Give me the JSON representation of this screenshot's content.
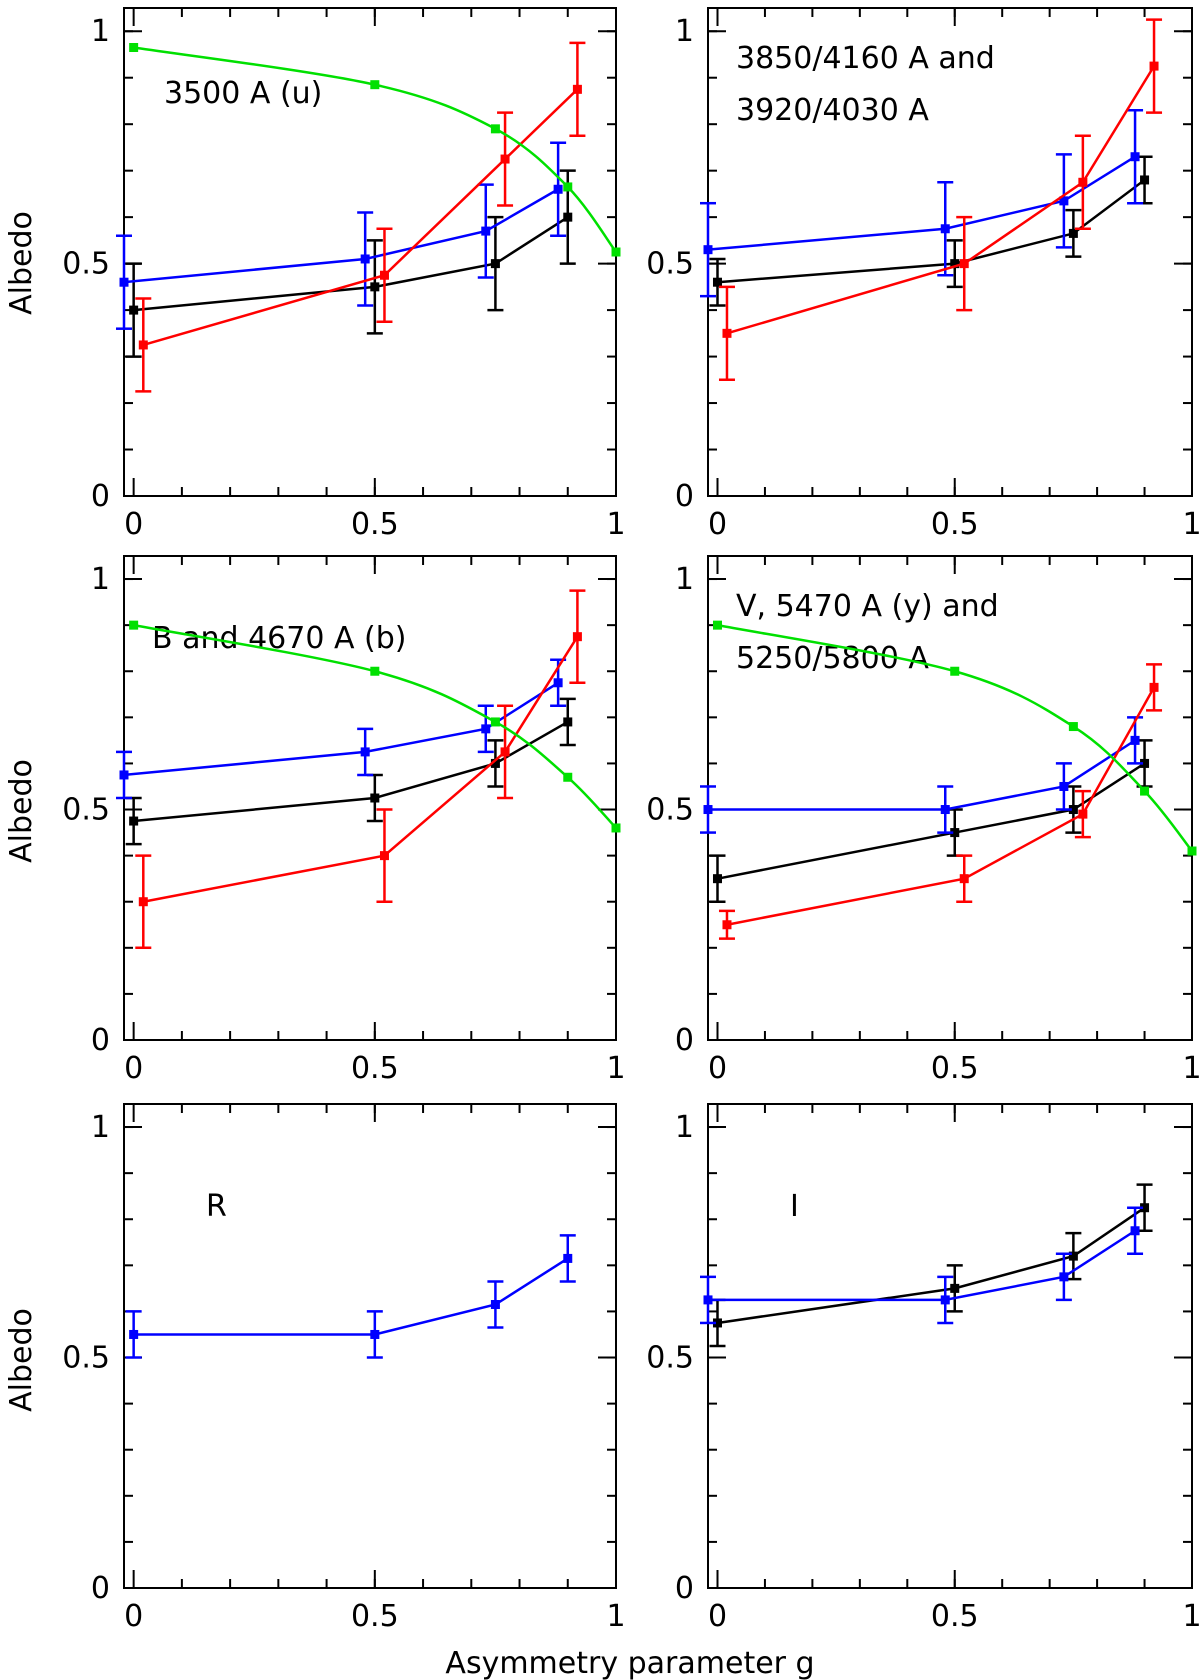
{
  "figure": {
    "xlabel": "Asymmetry parameter g",
    "ylabel": "Albedo"
  },
  "colors": {
    "black": "#000000",
    "blue": "#0000ff",
    "red": "#ff0000",
    "green": "#00e000"
  },
  "chart_data": [
    {
      "type": "line",
      "title_lines": [
        "3500 A (u)"
      ],
      "title_pos": "top-left",
      "xlim": [
        -0.02,
        1.0
      ],
      "ylim": [
        0,
        1.05
      ],
      "xticks": [
        {
          "v": 0,
          "label": "0"
        },
        {
          "v": 0.5,
          "label": "0.5"
        },
        {
          "v": 1,
          "label": "1"
        }
      ],
      "yticks": [
        {
          "v": 0,
          "label": "0"
        },
        {
          "v": 0.5,
          "label": "0.5"
        },
        {
          "v": 1,
          "label": "1"
        }
      ],
      "series": [
        {
          "name": "black",
          "color": "#000000",
          "smooth": false,
          "x": [
            0.0,
            0.5,
            0.75,
            0.9
          ],
          "y": [
            0.4,
            0.45,
            0.5,
            0.6
          ],
          "err": [
            0.1,
            0.1,
            0.1,
            0.1
          ]
        },
        {
          "name": "blue",
          "color": "#0000ff",
          "smooth": false,
          "x": [
            -0.02,
            0.48,
            0.73,
            0.88
          ],
          "y": [
            0.46,
            0.51,
            0.57,
            0.66
          ],
          "err": [
            0.1,
            0.1,
            0.1,
            0.1
          ]
        },
        {
          "name": "red",
          "color": "#ff0000",
          "smooth": false,
          "x": [
            0.02,
            0.52,
            0.77,
            0.92
          ],
          "y": [
            0.325,
            0.475,
            0.725,
            0.875
          ],
          "err": [
            0.1,
            0.1,
            0.1,
            0.1
          ]
        },
        {
          "name": "green",
          "color": "#00e000",
          "smooth": true,
          "x": [
            0.0,
            0.5,
            0.75,
            0.9,
            1.0
          ],
          "y": [
            0.965,
            0.885,
            0.79,
            0.665,
            0.525
          ],
          "err": []
        }
      ]
    },
    {
      "type": "line",
      "title_lines": [
        "3850/4160 A and",
        "3920/4030 A"
      ],
      "title_pos": "top-left",
      "xlim": [
        -0.02,
        1.0
      ],
      "ylim": [
        0,
        1.05
      ],
      "xticks": [
        {
          "v": 0,
          "label": "0"
        },
        {
          "v": 0.5,
          "label": "0.5"
        },
        {
          "v": 1,
          "label": "1"
        }
      ],
      "yticks": [
        {
          "v": 0,
          "label": "0"
        },
        {
          "v": 0.5,
          "label": "0.5"
        },
        {
          "v": 1,
          "label": "1"
        }
      ],
      "series": [
        {
          "name": "black",
          "color": "#000000",
          "smooth": false,
          "x": [
            0.0,
            0.5,
            0.75,
            0.9
          ],
          "y": [
            0.46,
            0.5,
            0.565,
            0.68
          ],
          "err": [
            0.05,
            0.05,
            0.05,
            0.05
          ]
        },
        {
          "name": "blue",
          "color": "#0000ff",
          "smooth": false,
          "x": [
            -0.02,
            0.48,
            0.73,
            0.88
          ],
          "y": [
            0.53,
            0.575,
            0.635,
            0.73
          ],
          "err": [
            0.1,
            0.1,
            0.1,
            0.1
          ]
        },
        {
          "name": "red",
          "color": "#ff0000",
          "smooth": false,
          "x": [
            0.02,
            0.52,
            0.77,
            0.92
          ],
          "y": [
            0.35,
            0.5,
            0.675,
            0.925
          ],
          "err": [
            0.1,
            0.1,
            0.1,
            0.1
          ]
        }
      ]
    },
    {
      "type": "line",
      "title_lines": [
        "B and 4670 A (b)"
      ],
      "title_pos": "top-left",
      "xlim": [
        -0.02,
        1.0
      ],
      "ylim": [
        0,
        1.05
      ],
      "xticks": [
        {
          "v": 0,
          "label": "0"
        },
        {
          "v": 0.5,
          "label": "0.5"
        },
        {
          "v": 1,
          "label": "1"
        }
      ],
      "yticks": [
        {
          "v": 0,
          "label": "0"
        },
        {
          "v": 0.5,
          "label": "0.5"
        },
        {
          "v": 1,
          "label": "1"
        }
      ],
      "series": [
        {
          "name": "black",
          "color": "#000000",
          "smooth": false,
          "x": [
            0.0,
            0.5,
            0.75,
            0.9
          ],
          "y": [
            0.475,
            0.525,
            0.6,
            0.69
          ],
          "err": [
            0.05,
            0.05,
            0.05,
            0.05
          ]
        },
        {
          "name": "blue",
          "color": "#0000ff",
          "smooth": false,
          "x": [
            -0.02,
            0.48,
            0.73,
            0.88
          ],
          "y": [
            0.575,
            0.625,
            0.675,
            0.775
          ],
          "err": [
            0.05,
            0.05,
            0.05,
            0.05
          ]
        },
        {
          "name": "red",
          "color": "#ff0000",
          "smooth": false,
          "x": [
            0.02,
            0.52,
            0.77,
            0.92
          ],
          "y": [
            0.3,
            0.4,
            0.625,
            0.875
          ],
          "err": [
            0.1,
            0.1,
            0.1,
            0.1
          ]
        },
        {
          "name": "green",
          "color": "#00e000",
          "smooth": true,
          "x": [
            0.0,
            0.5,
            0.75,
            0.9,
            1.0
          ],
          "y": [
            0.9,
            0.8,
            0.69,
            0.57,
            0.46
          ],
          "err": []
        }
      ]
    },
    {
      "type": "line",
      "title_lines": [
        "V, 5470 A (y) and",
        "5250/5800 A"
      ],
      "title_pos": "top-left",
      "xlim": [
        -0.02,
        1.0
      ],
      "ylim": [
        0,
        1.05
      ],
      "xticks": [
        {
          "v": 0,
          "label": "0"
        },
        {
          "v": 0.5,
          "label": "0.5"
        },
        {
          "v": 1,
          "label": "1"
        }
      ],
      "yticks": [
        {
          "v": 0,
          "label": "0"
        },
        {
          "v": 0.5,
          "label": "0.5"
        },
        {
          "v": 1,
          "label": "1"
        }
      ],
      "series": [
        {
          "name": "black",
          "color": "#000000",
          "smooth": false,
          "x": [
            0.0,
            0.5,
            0.75,
            0.9
          ],
          "y": [
            0.35,
            0.45,
            0.5,
            0.6
          ],
          "err": [
            0.05,
            0.05,
            0.05,
            0.05
          ]
        },
        {
          "name": "blue",
          "color": "#0000ff",
          "smooth": false,
          "x": [
            -0.02,
            0.48,
            0.73,
            0.88
          ],
          "y": [
            0.5,
            0.5,
            0.55,
            0.65
          ],
          "err": [
            0.05,
            0.05,
            0.05,
            0.05
          ]
        },
        {
          "name": "red",
          "color": "#ff0000",
          "smooth": false,
          "x": [
            0.02,
            0.52,
            0.77,
            0.92
          ],
          "y": [
            0.25,
            0.35,
            0.49,
            0.765
          ],
          "err": [
            0.03,
            0.05,
            0.05,
            0.05
          ]
        },
        {
          "name": "green",
          "color": "#00e000",
          "smooth": true,
          "x": [
            0.0,
            0.5,
            0.75,
            0.9,
            1.0
          ],
          "y": [
            0.9,
            0.8,
            0.68,
            0.54,
            0.41
          ],
          "err": []
        }
      ]
    },
    {
      "type": "line",
      "title_lines": [
        "R"
      ],
      "title_pos": "top-left",
      "xlim": [
        -0.02,
        1.0
      ],
      "ylim": [
        0,
        1.05
      ],
      "xticks": [
        {
          "v": 0,
          "label": "0"
        },
        {
          "v": 0.5,
          "label": "0.5"
        },
        {
          "v": 1,
          "label": "1"
        }
      ],
      "yticks": [
        {
          "v": 0,
          "label": "0"
        },
        {
          "v": 0.5,
          "label": "0.5"
        },
        {
          "v": 1,
          "label": "1"
        }
      ],
      "series": [
        {
          "name": "blue",
          "color": "#0000ff",
          "smooth": false,
          "x": [
            0.0,
            0.5,
            0.75,
            0.9
          ],
          "y": [
            0.55,
            0.55,
            0.615,
            0.715
          ],
          "err": [
            0.05,
            0.05,
            0.05,
            0.05
          ]
        }
      ]
    },
    {
      "type": "line",
      "title_lines": [
        "I"
      ],
      "title_pos": "top-left",
      "xlim": [
        -0.02,
        1.0
      ],
      "ylim": [
        0,
        1.05
      ],
      "xticks": [
        {
          "v": 0,
          "label": "0"
        },
        {
          "v": 0.5,
          "label": "0.5"
        },
        {
          "v": 1,
          "label": "1"
        }
      ],
      "yticks": [
        {
          "v": 0,
          "label": "0"
        },
        {
          "v": 0.5,
          "label": "0.5"
        },
        {
          "v": 1,
          "label": "1"
        }
      ],
      "series": [
        {
          "name": "black",
          "color": "#000000",
          "smooth": false,
          "x": [
            0.0,
            0.5,
            0.75,
            0.9
          ],
          "y": [
            0.575,
            0.65,
            0.72,
            0.825
          ],
          "err": [
            0.05,
            0.05,
            0.05,
            0.05
          ]
        },
        {
          "name": "blue",
          "color": "#0000ff",
          "smooth": false,
          "x": [
            -0.02,
            0.48,
            0.73,
            0.88
          ],
          "y": [
            0.625,
            0.625,
            0.675,
            0.775
          ],
          "err": [
            0.05,
            0.05,
            0.05,
            0.05
          ]
        }
      ]
    }
  ]
}
